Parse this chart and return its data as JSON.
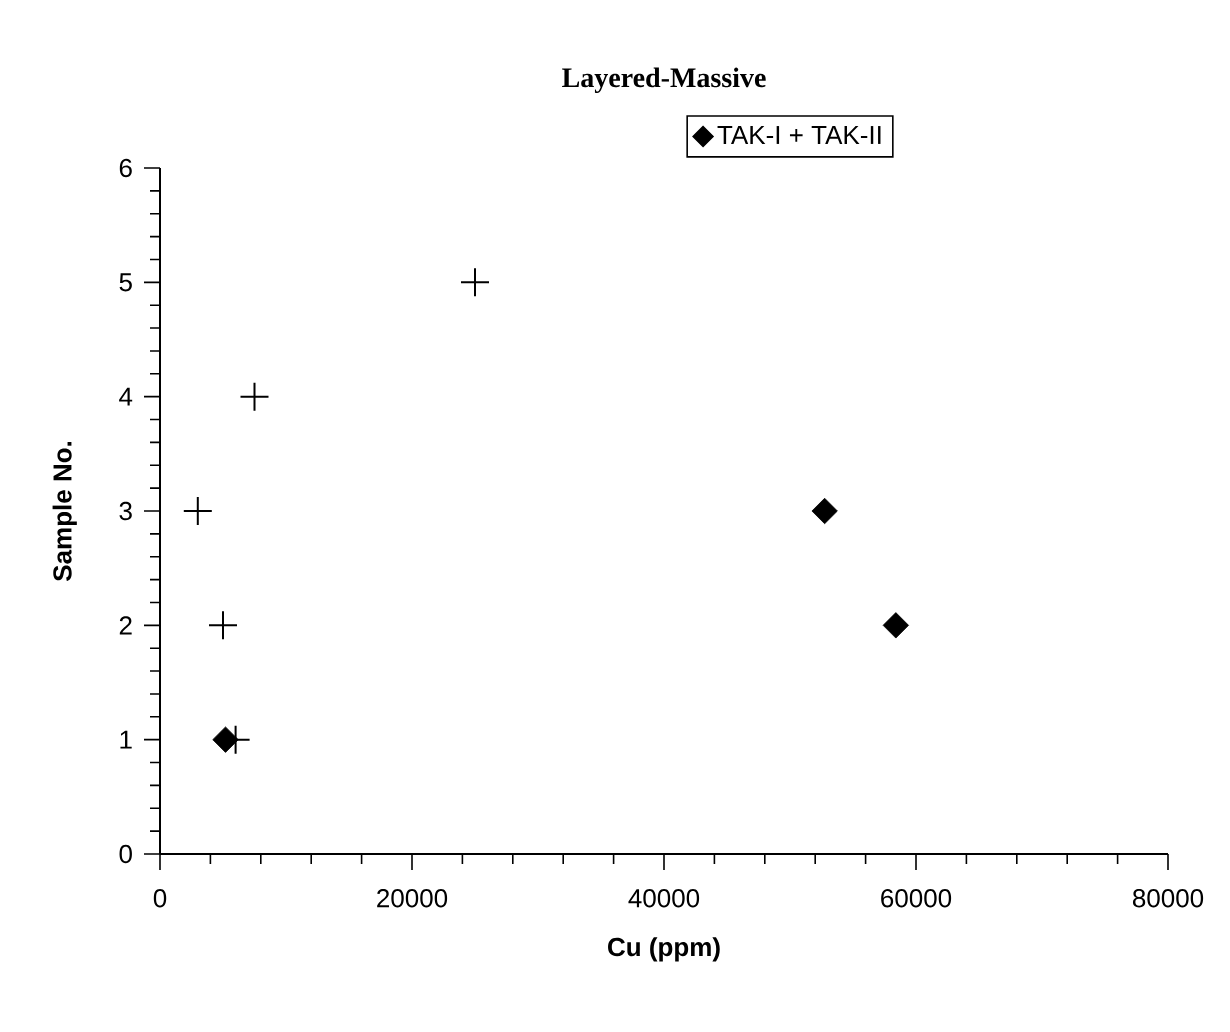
{
  "chart_data": {
    "type": "scatter",
    "title": "Layered-Massive",
    "xlabel": "Cu (ppm)",
    "ylabel": "Sample No.",
    "xlim": [
      0,
      80000
    ],
    "ylim": [
      0,
      6
    ],
    "xticks": [
      0,
      20000,
      40000,
      60000,
      80000
    ],
    "yticks": [
      0,
      1,
      2,
      3,
      4,
      5,
      6
    ],
    "legend": "top",
    "series": [
      {
        "name": "TAK-I + TAK-II",
        "color": "#000000",
        "marker": "diamond",
        "x": [
          5200,
          58400,
          52750
        ],
        "values": [
          1,
          2,
          3
        ]
      },
      {
        "color": "#000000",
        "marker": "cross",
        "x": [
          6000,
          5000,
          3000,
          7500,
          25000
        ],
        "values": [
          1,
          2,
          3,
          4,
          5
        ]
      }
    ]
  }
}
